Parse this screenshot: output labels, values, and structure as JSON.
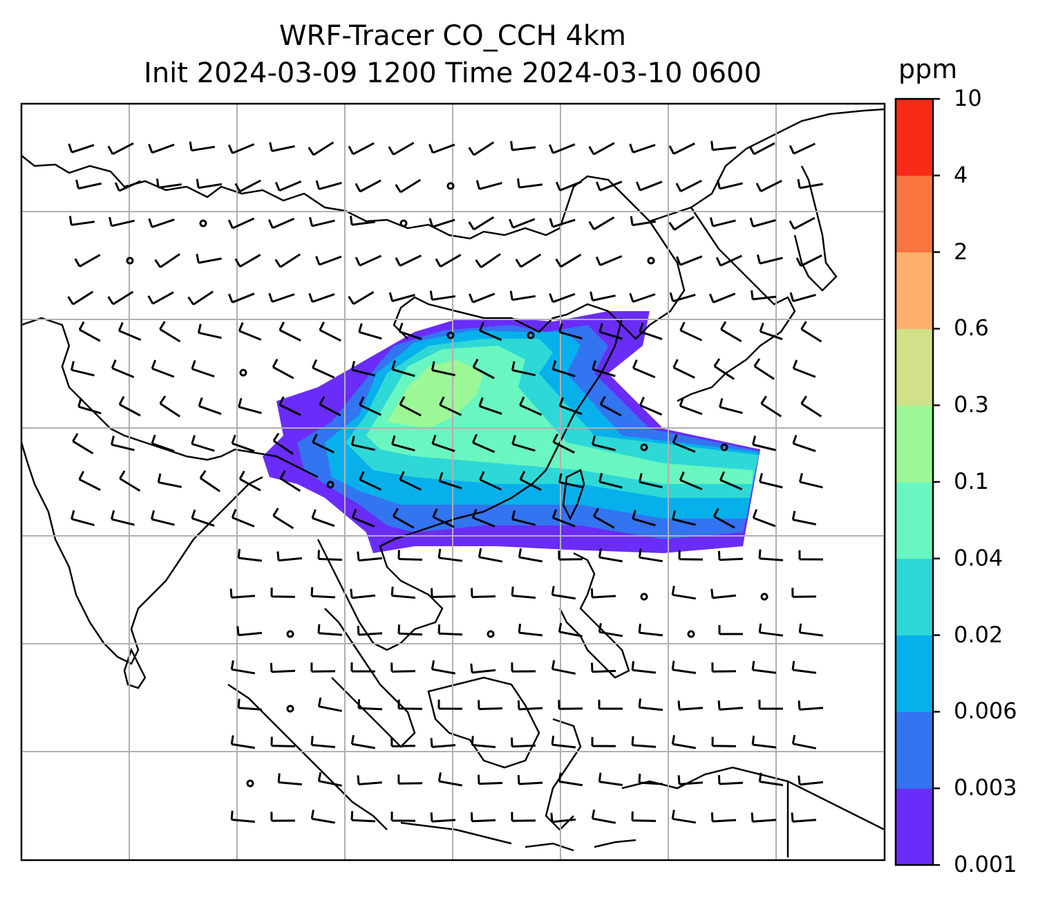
{
  "title": {
    "line1": "WRF-Tracer CO_CCH 4km",
    "line2": "Init 2024-03-09 1200 Time 2024-03-10 0600"
  },
  "colorbar": {
    "unit": "ppm",
    "ticks": [
      "0.001",
      "0.003",
      "0.006",
      "0.02",
      "0.04",
      "0.1",
      "0.3",
      "0.6",
      "2",
      "4",
      "10"
    ],
    "colors": [
      "#6a2cf8",
      "#3374f0",
      "#07b0eb",
      "#2ed8d6",
      "#6af6c0",
      "#9cf897",
      "#d0e18a",
      "#fcb06b",
      "#fc7540",
      "#f92a18"
    ]
  },
  "map": {
    "background": "#ffffff",
    "gridline_color": "#b0b0b0",
    "coastline_color": "#000000",
    "wind_barbs": "wind-barbs"
  }
}
